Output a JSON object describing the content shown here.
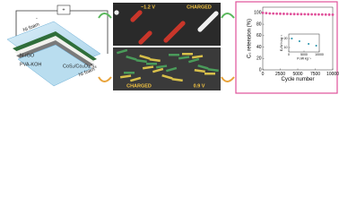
{
  "schematic": {
    "positive": "+",
    "negative": "-",
    "labels": [
      "Ni foam",
      "Ni foam",
      "N-rGO",
      "PVA-KOH",
      "CoS₂/Co₃O₄/S₈"
    ]
  },
  "structures": {
    "top_voltage": "~1.2 V",
    "top_state": "CHARGED",
    "bottom_state": "CHARGED",
    "bottom_voltage": "0.9 V"
  },
  "chart_data": {
    "type": "scatter",
    "xlabel": "Cycle number",
    "ylabel": "Cₛ retension (%)",
    "x": [
      0,
      500,
      1000,
      1500,
      2000,
      2500,
      3000,
      3500,
      4000,
      4500,
      5000,
      5500,
      6000,
      6500,
      7000,
      7500,
      8000,
      8500,
      9000,
      9500,
      10000
    ],
    "values": [
      100,
      99.5,
      99,
      98.8,
      98.6,
      98.5,
      98.3,
      98.2,
      98,
      97.9,
      97.8,
      97.7,
      97.6,
      97.5,
      97.4,
      97.3,
      97.2,
      97.1,
      97,
      96.9,
      96.8
    ],
    "color": "#e0509a",
    "xlim": [
      0,
      10000
    ],
    "ylim": [
      0,
      110
    ],
    "xticks": [
      0,
      2500,
      5000,
      7500,
      10000
    ],
    "yticks": [
      0,
      20,
      40,
      60,
      80,
      100
    ],
    "inset": {
      "xlabel": "Pᵥ/W kg⁻¹",
      "ylabel": "Eᵥ/W h kg⁻¹",
      "x": [
        1000,
        3500,
        6500,
        9000
      ],
      "values": [
        20,
        17,
        14,
        12
      ],
      "color": "#1f8fa8",
      "xlim": [
        0,
        10000
      ],
      "ylim": [
        5,
        25
      ],
      "xticks": [
        0,
        5000,
        10000
      ],
      "yticks": [
        10,
        20
      ]
    }
  }
}
